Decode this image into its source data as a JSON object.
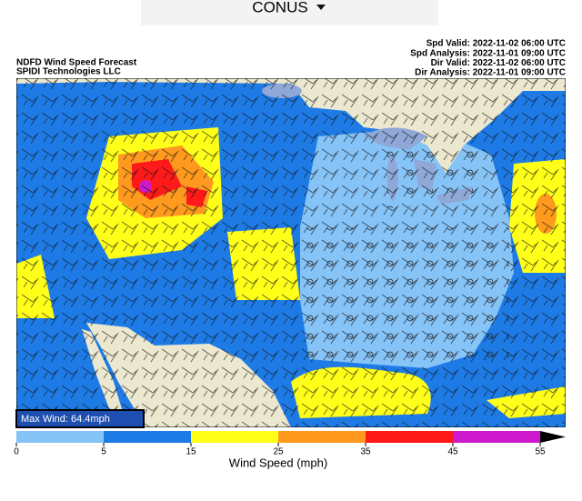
{
  "header": {
    "region": "CONUS"
  },
  "map": {
    "title": "NDFD Wind Speed Forecast",
    "credit": "SPIDI Technologies LLC",
    "valid_times": [
      "Spd Valid: 2022-11-02 06:00 UTC",
      "Spd Analysis: 2022-11-01 09:00 UTC",
      "Dir Valid: 2022-11-02 06:00 UTC",
      "Dir Analysis: 2022-11-01 09:00 UTC"
    ],
    "max_wind": "Max Wind: 64.4mph"
  },
  "colorbar": {
    "label": "Wind Speed (mph)",
    "ticks": [
      0,
      5,
      15,
      25,
      35,
      45,
      55
    ],
    "colors": [
      "#86c3f7",
      "#1e7be6",
      "#ffff1a",
      "#ff9a1f",
      "#ff1a1a",
      "#cc1acc"
    ],
    "extend_color": "#000000"
  }
}
